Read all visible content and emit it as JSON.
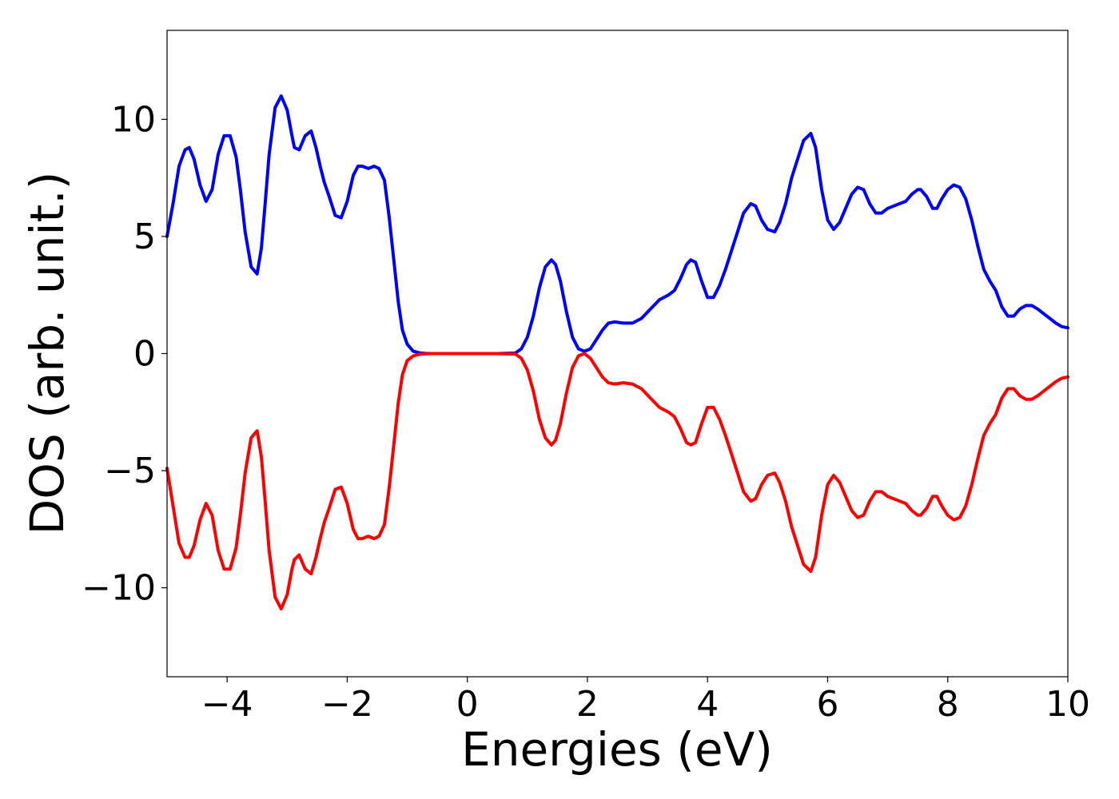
{
  "chart_data": {
    "type": "line",
    "title": "",
    "xlabel": "Energies (eV)",
    "ylabel": "DOS (arb. unit.)",
    "xlim": [
      -5,
      10
    ],
    "ylim": [
      -13.8,
      13.8
    ],
    "xticks": [
      -4,
      -2,
      0,
      2,
      4,
      6,
      8,
      10
    ],
    "xtick_labels": [
      "−4",
      "−2",
      "0",
      "2",
      "4",
      "6",
      "8",
      "10"
    ],
    "yticks": [
      10,
      5,
      0,
      -5,
      -10
    ],
    "ytick_labels": [
      "10",
      "5",
      "0",
      "−5",
      "−10"
    ],
    "grid": false,
    "legend": "none",
    "series": [
      {
        "color": "#0000ff",
        "x": [
          -5.0,
          -4.9,
          -4.8,
          -4.7,
          -4.63,
          -4.55,
          -4.45,
          -4.35,
          -4.25,
          -4.15,
          -4.05,
          -3.95,
          -3.85,
          -3.78,
          -3.7,
          -3.6,
          -3.5,
          -3.43,
          -3.37,
          -3.3,
          -3.2,
          -3.1,
          -3.0,
          -2.92,
          -2.88,
          -2.8,
          -2.7,
          -2.6,
          -2.52,
          -2.45,
          -2.38,
          -2.3,
          -2.2,
          -2.1,
          -2.0,
          -1.9,
          -1.82,
          -1.75,
          -1.65,
          -1.55,
          -1.47,
          -1.38,
          -1.3,
          -1.22,
          -1.15,
          -1.08,
          -1.0,
          -0.9,
          -0.8,
          -0.7,
          -0.6,
          -0.5,
          0.0,
          0.5,
          0.8,
          0.9,
          1.0,
          1.1,
          1.2,
          1.3,
          1.4,
          1.47,
          1.55,
          1.65,
          1.75,
          1.85,
          1.95,
          2.05,
          2.15,
          2.25,
          2.35,
          2.45,
          2.6,
          2.75,
          2.9,
          3.05,
          3.2,
          3.35,
          3.45,
          3.55,
          3.65,
          3.72,
          3.8,
          3.9,
          4.0,
          4.1,
          4.2,
          4.3,
          4.4,
          4.5,
          4.6,
          4.72,
          4.8,
          4.9,
          5.0,
          5.12,
          5.2,
          5.3,
          5.4,
          5.5,
          5.6,
          5.72,
          5.8,
          5.9,
          6.0,
          6.1,
          6.2,
          6.3,
          6.4,
          6.5,
          6.6,
          6.7,
          6.8,
          6.9,
          7.0,
          7.1,
          7.2,
          7.3,
          7.4,
          7.5,
          7.55,
          7.65,
          7.75,
          7.82,
          7.9,
          8.0,
          8.1,
          8.2,
          8.3,
          8.4,
          8.5,
          8.6,
          8.7,
          8.8,
          8.9,
          9.0,
          9.1,
          9.2,
          9.3,
          9.4,
          9.5,
          9.6,
          9.7,
          9.8,
          9.9,
          10.0
        ],
        "y": [
          5.0,
          6.4,
          8.0,
          8.7,
          8.8,
          8.3,
          7.2,
          6.5,
          7.0,
          8.5,
          9.3,
          9.3,
          8.4,
          7.0,
          5.2,
          3.7,
          3.4,
          4.5,
          6.3,
          8.5,
          10.5,
          11.0,
          10.4,
          9.3,
          8.8,
          8.7,
          9.3,
          9.5,
          8.8,
          8.0,
          7.3,
          6.7,
          5.9,
          5.8,
          6.5,
          7.6,
          8.0,
          8.0,
          7.9,
          8.0,
          7.9,
          7.4,
          5.8,
          3.9,
          2.2,
          1.0,
          0.4,
          0.1,
          0.03,
          0.01,
          0.0,
          0.0,
          0.0,
          0.0,
          0.02,
          0.2,
          0.7,
          1.6,
          2.8,
          3.7,
          4.0,
          3.8,
          3.1,
          1.8,
          0.7,
          0.2,
          0.1,
          0.2,
          0.6,
          1.0,
          1.3,
          1.35,
          1.3,
          1.3,
          1.5,
          1.9,
          2.3,
          2.5,
          2.7,
          3.2,
          3.8,
          4.0,
          3.9,
          3.1,
          2.4,
          2.4,
          2.9,
          3.6,
          4.4,
          5.2,
          6.0,
          6.4,
          6.3,
          5.7,
          5.3,
          5.2,
          5.6,
          6.4,
          7.5,
          8.3,
          9.1,
          9.4,
          8.8,
          7.0,
          5.7,
          5.3,
          5.6,
          6.2,
          6.8,
          7.1,
          7.0,
          6.4,
          6.0,
          6.0,
          6.2,
          6.3,
          6.4,
          6.5,
          6.8,
          7.0,
          7.0,
          6.7,
          6.2,
          6.2,
          6.6,
          7.0,
          7.2,
          7.1,
          6.6,
          5.7,
          4.6,
          3.6,
          3.1,
          2.7,
          2.0,
          1.6,
          1.6,
          1.9,
          2.05,
          2.05,
          1.9,
          1.7,
          1.5,
          1.3,
          1.15,
          1.1
        ]
      },
      {
        "color": "#ff0000",
        "x": [
          -5.0,
          -4.9,
          -4.8,
          -4.7,
          -4.63,
          -4.55,
          -4.45,
          -4.35,
          -4.25,
          -4.15,
          -4.05,
          -3.95,
          -3.85,
          -3.78,
          -3.7,
          -3.6,
          -3.5,
          -3.43,
          -3.37,
          -3.3,
          -3.2,
          -3.1,
          -3.0,
          -2.92,
          -2.88,
          -2.8,
          -2.7,
          -2.6,
          -2.52,
          -2.45,
          -2.38,
          -2.3,
          -2.2,
          -2.1,
          -2.0,
          -1.9,
          -1.82,
          -1.75,
          -1.65,
          -1.55,
          -1.47,
          -1.38,
          -1.3,
          -1.22,
          -1.15,
          -1.08,
          -1.0,
          -0.9,
          -0.8,
          -0.7,
          -0.6,
          -0.5,
          0.0,
          0.5,
          0.8,
          0.9,
          1.0,
          1.1,
          1.2,
          1.3,
          1.4,
          1.47,
          1.55,
          1.65,
          1.75,
          1.85,
          1.95,
          2.05,
          2.15,
          2.25,
          2.35,
          2.45,
          2.6,
          2.75,
          2.9,
          3.05,
          3.2,
          3.35,
          3.45,
          3.55,
          3.65,
          3.72,
          3.8,
          3.9,
          4.0,
          4.1,
          4.2,
          4.3,
          4.4,
          4.5,
          4.6,
          4.72,
          4.8,
          4.9,
          5.0,
          5.12,
          5.2,
          5.3,
          5.4,
          5.5,
          5.6,
          5.72,
          5.8,
          5.9,
          6.0,
          6.1,
          6.2,
          6.3,
          6.4,
          6.5,
          6.6,
          6.7,
          6.8,
          6.9,
          7.0,
          7.1,
          7.2,
          7.3,
          7.4,
          7.5,
          7.55,
          7.65,
          7.75,
          7.82,
          7.9,
          8.0,
          8.1,
          8.2,
          8.3,
          8.4,
          8.5,
          8.6,
          8.7,
          8.8,
          8.9,
          9.0,
          9.1,
          9.2,
          9.3,
          9.4,
          9.5,
          9.6,
          9.7,
          9.8,
          9.9,
          10.0
        ],
        "y": [
          -4.9,
          -6.5,
          -8.1,
          -8.7,
          -8.7,
          -8.2,
          -7.1,
          -6.4,
          -6.9,
          -8.4,
          -9.2,
          -9.2,
          -8.3,
          -6.9,
          -5.1,
          -3.6,
          -3.3,
          -4.4,
          -6.2,
          -8.4,
          -10.4,
          -10.9,
          -10.3,
          -9.2,
          -8.8,
          -8.6,
          -9.2,
          -9.4,
          -8.7,
          -7.9,
          -7.2,
          -6.6,
          -5.8,
          -5.7,
          -6.4,
          -7.5,
          -7.9,
          -7.9,
          -7.8,
          -7.9,
          -7.8,
          -7.3,
          -5.7,
          -3.8,
          -2.1,
          -0.9,
          -0.3,
          -0.1,
          -0.03,
          -0.01,
          0.0,
          0.0,
          0.0,
          0.0,
          -0.02,
          -0.2,
          -0.7,
          -1.6,
          -2.8,
          -3.6,
          -3.9,
          -3.7,
          -3.0,
          -1.7,
          -0.6,
          -0.1,
          0.0,
          -0.2,
          -0.6,
          -1.0,
          -1.25,
          -1.3,
          -1.25,
          -1.3,
          -1.5,
          -1.9,
          -2.3,
          -2.5,
          -2.7,
          -3.2,
          -3.8,
          -3.9,
          -3.8,
          -3.0,
          -2.3,
          -2.3,
          -2.8,
          -3.5,
          -4.3,
          -5.1,
          -5.9,
          -6.3,
          -6.2,
          -5.6,
          -5.2,
          -5.1,
          -5.5,
          -6.3,
          -7.4,
          -8.2,
          -9.0,
          -9.3,
          -8.7,
          -6.9,
          -5.6,
          -5.2,
          -5.5,
          -6.1,
          -6.7,
          -7.0,
          -6.9,
          -6.3,
          -5.9,
          -5.9,
          -6.1,
          -6.2,
          -6.3,
          -6.4,
          -6.7,
          -6.9,
          -6.9,
          -6.6,
          -6.1,
          -6.1,
          -6.5,
          -6.9,
          -7.1,
          -7.0,
          -6.5,
          -5.6,
          -4.5,
          -3.5,
          -3.0,
          -2.6,
          -1.9,
          -1.5,
          -1.5,
          -1.8,
          -1.95,
          -1.95,
          -1.8,
          -1.6,
          -1.4,
          -1.2,
          -1.05,
          -1.0
        ]
      }
    ]
  }
}
